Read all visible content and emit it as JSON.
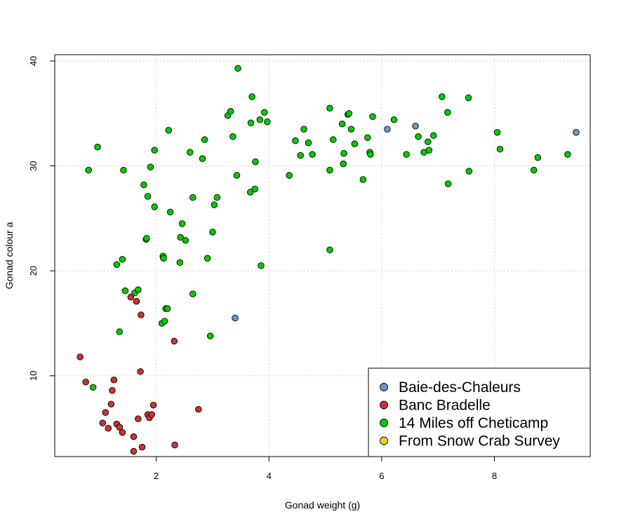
{
  "chart_data": {
    "type": "scatter",
    "xlabel": "Gonad weight (g)",
    "ylabel": "Gonad colour a",
    "xlim": [
      0.2,
      9.7
    ],
    "ylim": [
      2.3,
      40.6
    ],
    "x_ticks": [
      2,
      4,
      6,
      8
    ],
    "y_ticks": [
      10,
      20,
      30,
      40
    ],
    "grid": true,
    "legend_position": "bottom-right",
    "series": [
      {
        "name": "Baie-des-Chaleurs",
        "color": "#6699CC",
        "points": [
          [
            3.4,
            15.5
          ],
          [
            6.1,
            33.5
          ],
          [
            6.6,
            33.8
          ],
          [
            9.45,
            33.2
          ]
        ]
      },
      {
        "name": "Banc Bradelle",
        "color": "#CC3333",
        "points": [
          [
            0.65,
            11.8
          ],
          [
            0.75,
            9.4
          ],
          [
            1.05,
            5.5
          ],
          [
            1.1,
            6.5
          ],
          [
            1.15,
            5.0
          ],
          [
            1.2,
            7.3
          ],
          [
            1.22,
            8.6
          ],
          [
            1.25,
            9.6
          ],
          [
            1.3,
            5.4
          ],
          [
            1.35,
            5.1
          ],
          [
            1.4,
            4.6
          ],
          [
            1.55,
            17.5
          ],
          [
            1.6,
            4.2
          ],
          [
            1.6,
            2.8
          ],
          [
            1.65,
            17.1
          ],
          [
            1.68,
            5.9
          ],
          [
            1.72,
            10.4
          ],
          [
            1.73,
            15.8
          ],
          [
            1.75,
            3.2
          ],
          [
            1.85,
            6.3
          ],
          [
            1.88,
            6.0
          ],
          [
            1.92,
            6.3
          ],
          [
            1.95,
            7.2
          ],
          [
            2.32,
            13.3
          ],
          [
            2.33,
            3.4
          ],
          [
            2.75,
            6.8
          ]
        ]
      },
      {
        "name": "14 Miles off Cheticamp",
        "color": "#00CC00",
        "points": [
          [
            0.8,
            29.6
          ],
          [
            0.88,
            8.9
          ],
          [
            0.96,
            31.8
          ],
          [
            1.3,
            20.6
          ],
          [
            1.35,
            14.2
          ],
          [
            1.4,
            21.1
          ],
          [
            1.42,
            29.6
          ],
          [
            1.45,
            18.1
          ],
          [
            1.62,
            17.9
          ],
          [
            1.68,
            18.2
          ],
          [
            1.78,
            28.2
          ],
          [
            1.82,
            23.0
          ],
          [
            1.83,
            23.1
          ],
          [
            1.85,
            27.1
          ],
          [
            1.9,
            29.9
          ],
          [
            1.97,
            31.5
          ],
          [
            1.97,
            26.1
          ],
          [
            2.1,
            15.0
          ],
          [
            2.12,
            21.4
          ],
          [
            2.13,
            21.2
          ],
          [
            2.15,
            15.2
          ],
          [
            2.17,
            16.4
          ],
          [
            2.2,
            16.4
          ],
          [
            2.22,
            33.4
          ],
          [
            2.25,
            25.6
          ],
          [
            2.42,
            20.8
          ],
          [
            2.43,
            23.2
          ],
          [
            2.46,
            24.5
          ],
          [
            2.52,
            22.9
          ],
          [
            2.6,
            31.3
          ],
          [
            2.65,
            17.8
          ],
          [
            2.65,
            27.0
          ],
          [
            2.82,
            30.7
          ],
          [
            2.86,
            32.5
          ],
          [
            2.91,
            21.2
          ],
          [
            2.96,
            13.8
          ],
          [
            3.0,
            23.7
          ],
          [
            3.03,
            26.3
          ],
          [
            3.08,
            27.0
          ],
          [
            3.27,
            34.8
          ],
          [
            3.32,
            35.2
          ],
          [
            3.36,
            32.8
          ],
          [
            3.43,
            29.1
          ],
          [
            3.45,
            39.3
          ],
          [
            3.67,
            27.5
          ],
          [
            3.68,
            34.1
          ],
          [
            3.7,
            36.6
          ],
          [
            3.75,
            27.8
          ],
          [
            3.76,
            30.4
          ],
          [
            3.84,
            34.4
          ],
          [
            3.86,
            20.5
          ],
          [
            3.92,
            35.1
          ],
          [
            3.97,
            34.2
          ],
          [
            4.36,
            29.1
          ],
          [
            4.47,
            32.4
          ],
          [
            4.56,
            31.0
          ],
          [
            4.62,
            33.5
          ],
          [
            4.7,
            32.2
          ],
          [
            4.77,
            31.1
          ],
          [
            5.08,
            35.5
          ],
          [
            5.08,
            29.6
          ],
          [
            5.08,
            22.0
          ],
          [
            5.14,
            32.5
          ],
          [
            5.3,
            34.0
          ],
          [
            5.32,
            30.2
          ],
          [
            5.33,
            31.2
          ],
          [
            5.4,
            34.9
          ],
          [
            5.42,
            35.0
          ],
          [
            5.46,
            33.5
          ],
          [
            5.52,
            32.1
          ],
          [
            5.67,
            28.7
          ],
          [
            5.75,
            32.7
          ],
          [
            5.79,
            31.3
          ],
          [
            5.8,
            31.1
          ],
          [
            5.84,
            34.7
          ],
          [
            6.22,
            34.4
          ],
          [
            6.44,
            31.1
          ],
          [
            6.65,
            32.8
          ],
          [
            6.75,
            31.3
          ],
          [
            6.82,
            32.3
          ],
          [
            6.84,
            31.5
          ],
          [
            6.92,
            32.9
          ],
          [
            7.07,
            36.6
          ],
          [
            7.17,
            35.1
          ],
          [
            7.18,
            28.3
          ],
          [
            7.54,
            36.5
          ],
          [
            7.55,
            29.5
          ],
          [
            8.05,
            33.2
          ],
          [
            8.1,
            31.6
          ],
          [
            8.7,
            29.6
          ],
          [
            8.77,
            30.8
          ],
          [
            9.3,
            31.1
          ]
        ]
      },
      {
        "name": "From Snow Crab Survey",
        "color": "#F5CC33",
        "points": []
      }
    ]
  }
}
